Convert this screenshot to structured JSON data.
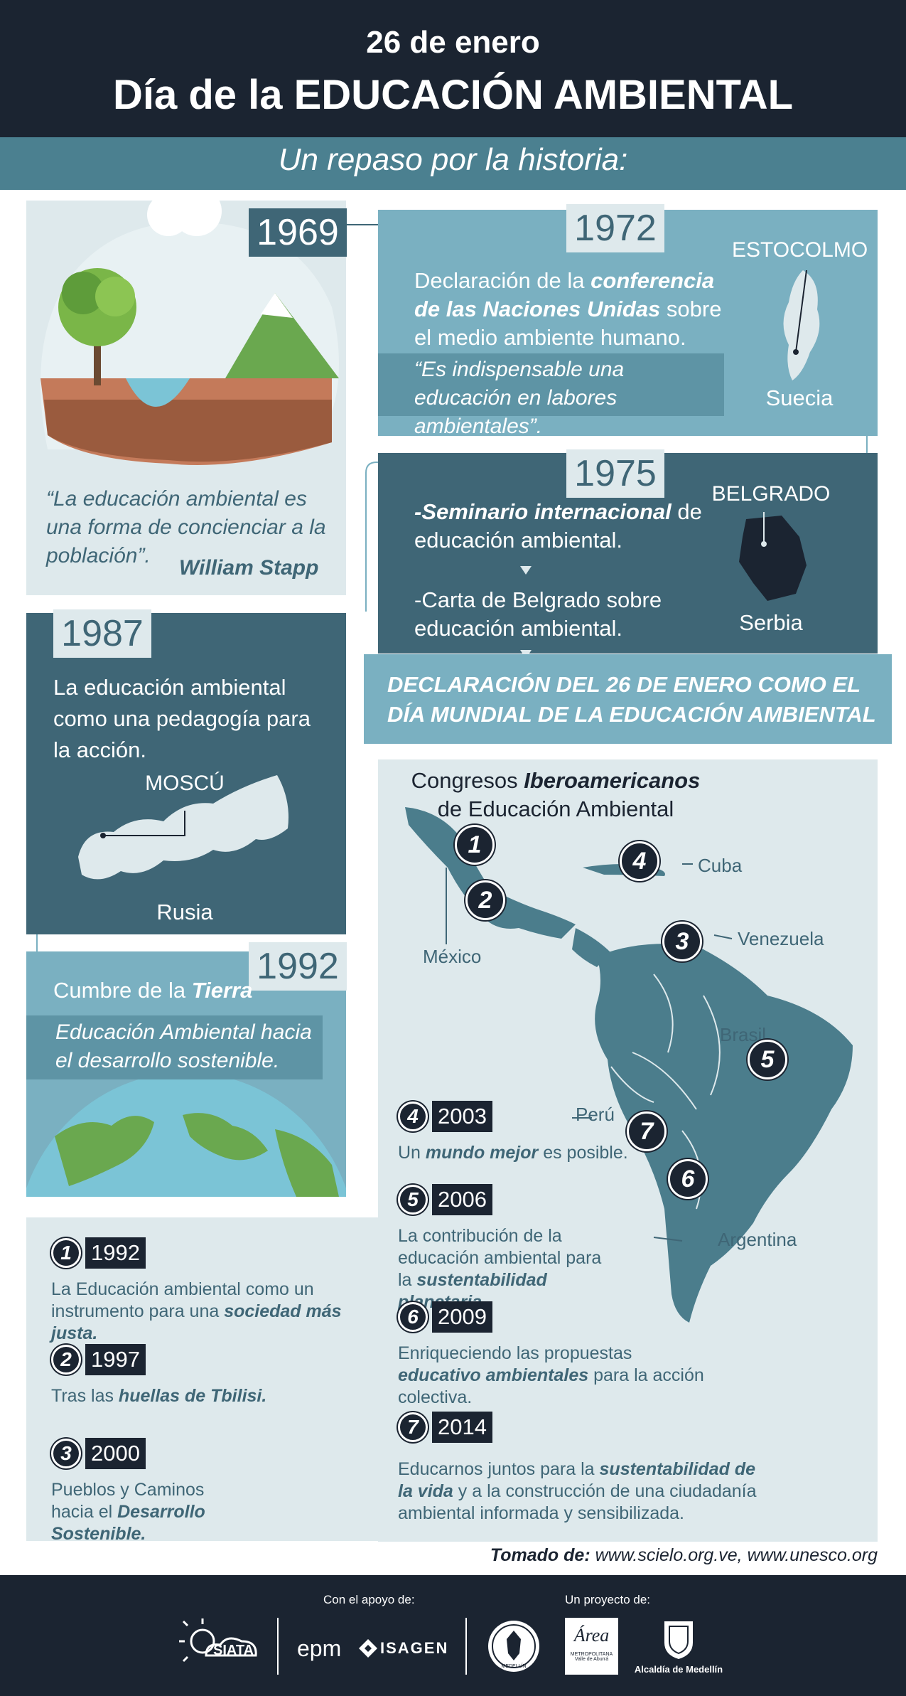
{
  "header": {
    "date": "26 de enero",
    "title": "Día de la EDUCACIÓN AMBIENTAL",
    "subtitle": "Un repaso por la historia:"
  },
  "timeline": {
    "y1969": {
      "year": "1969",
      "quote": "“La educación ambiental es una forma de concienciar a la población”.",
      "author": "William Stapp"
    },
    "y1972": {
      "year": "1972",
      "text_a": "Declaración de la ",
      "text_b": "conferencia de las Naciones Unidas",
      "text_c": " sobre el medio ambiente humano.",
      "quote": "“Es indispensable una educación en labores ambientales”.",
      "city": "ESTOCOLMO",
      "country": "Suecia"
    },
    "y1975": {
      "year": "1975",
      "text_a1": "-Seminario internacional",
      "text_a2": " de educación ambiental.",
      "text_b": "-Carta de Belgrado sobre educación ambiental.",
      "city": "BELGRADO",
      "country": "Serbia",
      "declaration": "DECLARACIÓN DEL 26 DE ENERO COMO EL DÍA MUNDIAL DE LA EDUCACIÓN AMBIENTAL"
    },
    "y1987": {
      "year": "1987",
      "text": "La educación ambiental como una pedagogía para la acción.",
      "city": "MOSCÚ",
      "country": "Rusia"
    },
    "y1992": {
      "year": "1992",
      "text_a": "Cumbre de la ",
      "text_b": "Tierra",
      "quote": "Educación Ambiental hacia el desarrollo sostenible."
    }
  },
  "congresos": {
    "title_a": "Congresos ",
    "title_b": "Iberoamericanos",
    "title_c": "de Educación Ambiental",
    "map_labels": {
      "mexico": "México",
      "cuba": "Cuba",
      "venezuela": "Venezuela",
      "brasil": "Brasil",
      "peru": "Perú",
      "argentina": "Argentina"
    },
    "map_numbers": [
      "1",
      "2",
      "3",
      "4",
      "5",
      "6",
      "7"
    ],
    "entries": [
      {
        "num": "1",
        "year": "1992",
        "t1": "La Educación ambiental como un instrumento para una ",
        "b": "sociedad más justa.",
        "t2": ""
      },
      {
        "num": "2",
        "year": "1997",
        "t1": "Tras las ",
        "b": "huellas de Tbilisi.",
        "t2": ""
      },
      {
        "num": "3",
        "year": "2000",
        "t1": "Pueblos y Caminos hacia el ",
        "b": "Desarrollo Sostenible.",
        "t2": ""
      },
      {
        "num": "4",
        "year": "2003",
        "t1": "Un ",
        "b": "mundo mejor",
        "t2": " es posible."
      },
      {
        "num": "5",
        "year": "2006",
        "t1": "La contribución de la educación ambiental para la ",
        "b": "sustentabilidad planetaria.",
        "t2": ""
      },
      {
        "num": "6",
        "year": "2009",
        "t1": "Enriqueciendo las propuestas ",
        "b": "educativo ambientales",
        "t2": " para la acción colectiva."
      },
      {
        "num": "7",
        "year": "2014",
        "t1": "Educarnos juntos para la ",
        "b": "sustentabilidad de la vida",
        "t2": " y a la construcción de una ciudadanía ambiental informada y sensibilizada."
      }
    ]
  },
  "source": {
    "label": "Tomado de:",
    "urls": " www.scielo.org.ve, www.unesco.org"
  },
  "footer": {
    "support_label": "Con el apoyo de:",
    "project_label": "Un proyecto de:",
    "logos": {
      "siata": "SIATA",
      "epm": "epm",
      "isagen": "ISAGEN",
      "medellin": "MEDELLÍN",
      "area": "Área",
      "area_sub1": "METROPOLITANA",
      "area_sub2": "Valle de Aburrá",
      "alcaldia": "Alcaldía de Medellín"
    }
  },
  "colors": {
    "dark": "#1b2431",
    "teal_dark": "#3f6676",
    "teal_mid": "#4b8090",
    "teal_light": "#7ab0c1",
    "pale": "#dee9ec"
  }
}
